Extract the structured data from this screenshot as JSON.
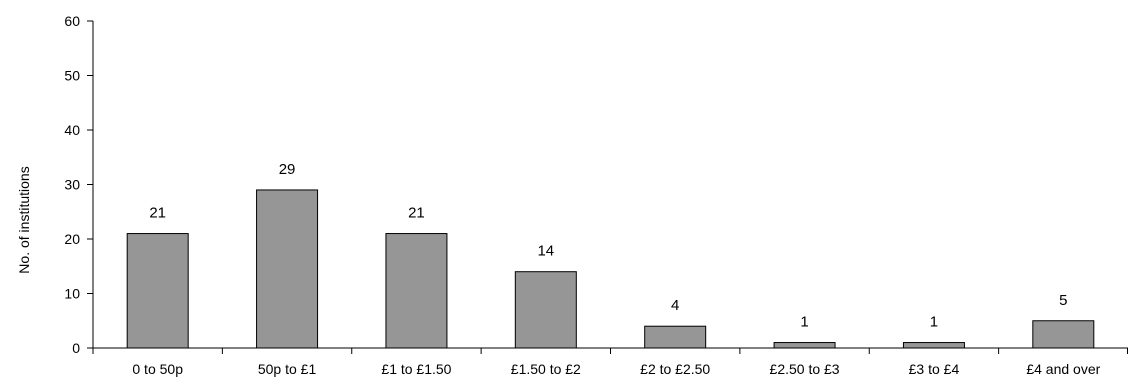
{
  "chart_data": {
    "type": "bar",
    "title": "",
    "xlabel": "",
    "ylabel": "No. of institutions",
    "ylim": [
      0,
      60
    ],
    "yticks": [
      0,
      10,
      20,
      30,
      40,
      50,
      60
    ],
    "grid": false,
    "categories": [
      "0 to 50p",
      "50p to £1",
      "£1 to £1.50",
      "£1.50 to £2",
      "£2 to £2.50",
      "£2.50 to £3",
      "£3 to £4",
      "£4 and over"
    ],
    "values": [
      21,
      29,
      21,
      14,
      4,
      1,
      1,
      5
    ],
    "data_labels": [
      "21",
      "29",
      "21",
      "14",
      "4",
      "1",
      "1",
      "5"
    ],
    "colors": {
      "bar_fill": "#969696",
      "bar_stroke": "#000000",
      "axis": "#000000"
    }
  }
}
